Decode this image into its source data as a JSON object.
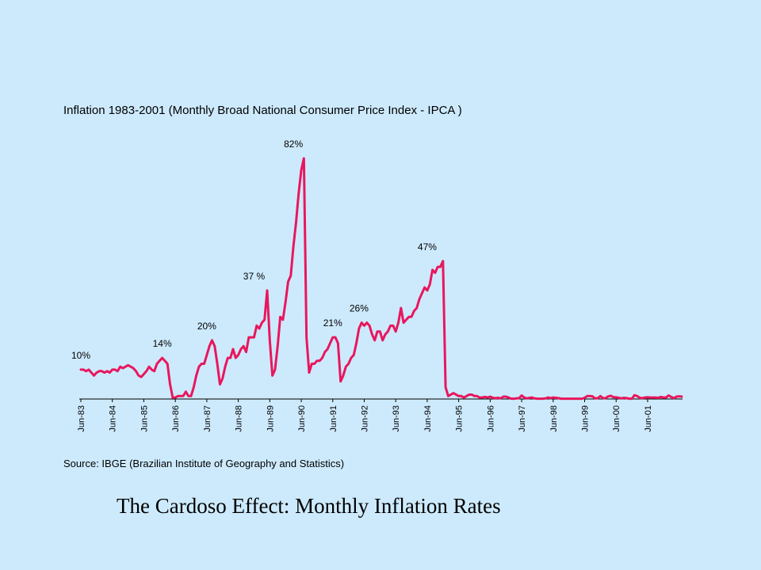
{
  "caption": "The Cardoso Effect:  Monthly Inflation Rates",
  "chart_data": {
    "type": "line",
    "title": "Inflation 1983-2001 (Monthly Broad National Consumer Price Index - IPCA )",
    "source": "Source: IBGE (Brazilian Institute of Geography and Statistics)",
    "xlabel": "",
    "ylabel": "",
    "ylim": [
      0,
      85
    ],
    "grid": false,
    "legend": "none",
    "line_color": "#e8175d",
    "x_ticks": [
      "Jun-83",
      "Jun-84",
      "Jun-85",
      "Jun-86",
      "Jun-87",
      "Jun-88",
      "Jun-89",
      "Jun-90",
      "Jun-91",
      "Jun-92",
      "Jun-93",
      "Jun-94",
      "Jun-95",
      "Jun-96",
      "Jun-97",
      "Jun-98",
      "Jun-99",
      "Jun-00",
      "Jun-01"
    ],
    "series": [
      {
        "start": "Jun-83",
        "frequency": "monthly",
        "values": [
          10,
          10,
          9.5,
          10,
          9,
          8,
          9,
          9.5,
          9.5,
          9,
          9.5,
          9,
          10,
          10,
          9.5,
          11,
          10.5,
          11,
          11.5,
          11,
          10.5,
          9.5,
          8,
          7.5,
          8.5,
          9.5,
          11,
          10,
          9.5,
          12,
          13,
          14,
          13,
          12,
          5,
          0.5,
          0.5,
          1,
          1,
          1,
          2.5,
          1,
          1,
          4,
          8,
          11,
          12,
          12,
          15,
          18,
          20,
          18,
          12,
          5,
          7,
          11,
          14,
          14,
          17,
          14,
          15,
          17,
          18,
          16,
          21,
          21,
          21,
          25,
          24,
          26,
          27,
          37,
          20,
          8,
          10,
          18,
          28,
          27,
          33,
          40,
          42,
          52,
          60,
          70,
          78,
          82,
          21,
          9,
          12,
          12,
          13,
          13,
          14,
          16,
          17,
          19,
          21,
          21,
          19,
          6,
          8,
          11,
          12,
          14,
          15,
          19,
          24,
          26,
          25,
          26,
          25,
          22,
          20,
          23,
          23,
          20,
          22,
          23,
          25,
          25,
          23,
          26,
          31,
          26,
          27,
          28,
          28,
          30,
          31,
          34,
          36,
          38,
          37,
          39,
          44,
          43,
          45,
          45,
          47,
          4,
          1,
          1.5,
          2,
          1.5,
          1,
          1,
          0.5,
          1,
          1.5,
          1.5,
          1,
          1,
          0.5,
          0.5,
          0.7,
          0.5,
          0.8,
          0.4,
          0.3,
          0.4,
          0.2,
          0.8,
          0.8,
          0.5,
          0.1,
          0.1,
          0.2,
          0.3,
          1.2,
          0.5,
          0.2,
          0.4,
          0.5,
          0.2,
          0.1,
          0.1,
          0.1,
          0.2,
          0.5,
          0.3,
          0.5,
          0.4,
          0.3,
          0.1,
          0.1,
          0.1,
          0.1,
          0.1,
          0.1,
          0.1,
          0.1,
          0.1,
          0.4,
          1,
          1,
          0.9,
          0.2,
          0.3,
          1,
          0.3,
          0.3,
          0.9,
          1.1,
          0.6,
          0.6,
          0.4,
          0.2,
          0.4,
          0.3,
          0.1,
          0.1,
          1.3,
          1,
          0.4,
          0.3,
          0.5,
          0.6,
          0.5,
          0.5,
          0.5,
          0.4,
          0.7,
          0.5,
          0.5,
          1.2,
          0.7,
          0.3,
          0.8,
          0.9,
          0.8
        ]
      }
    ],
    "annotations": [
      {
        "text": "10%",
        "x": "Jun-83",
        "y": 10
      },
      {
        "text": "14%",
        "x": "Jan-86",
        "y": 14
      },
      {
        "text": "20%",
        "x": "Jun-87",
        "y": 20
      },
      {
        "text": "37 %",
        "x": "Dec-88",
        "y": 37
      },
      {
        "text": "82%",
        "x": "Mar-90",
        "y": 82
      },
      {
        "text": "21%",
        "x": "Jun-91",
        "y": 21
      },
      {
        "text": "26%",
        "x": "Apr-92",
        "y": 26
      },
      {
        "text": "47%",
        "x": "Jun-94",
        "y": 47
      }
    ]
  }
}
